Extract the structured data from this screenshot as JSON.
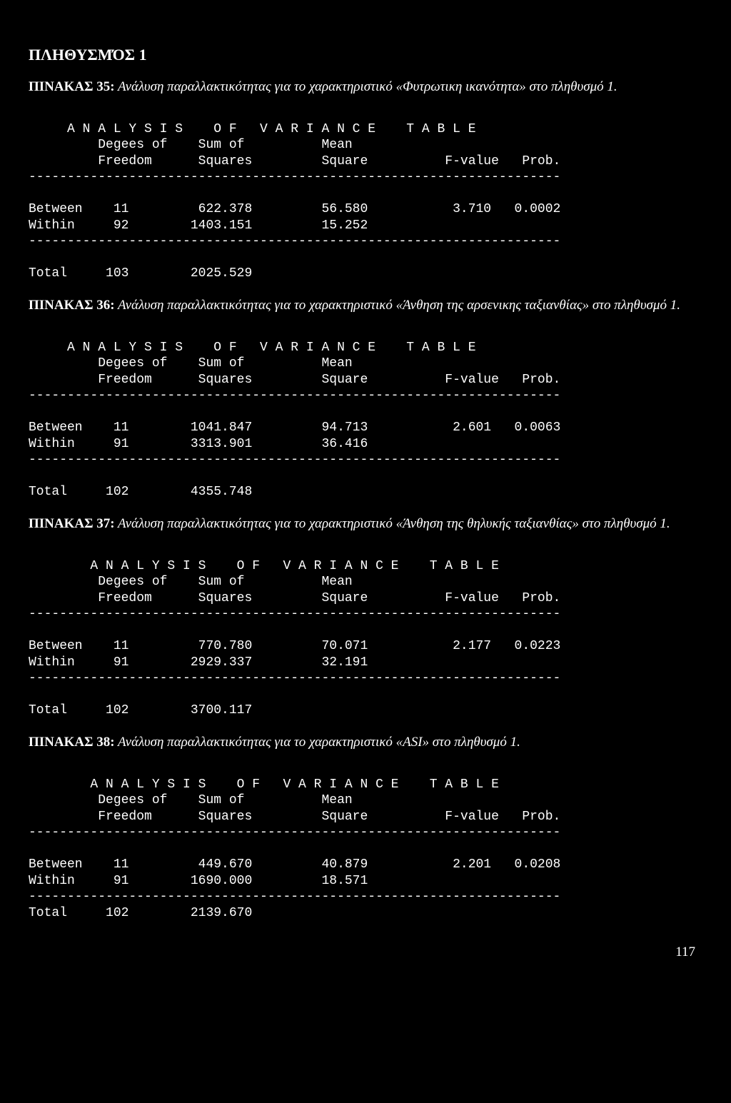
{
  "page_title": "ΠΛΗΘΥΣΜΌΣ 1",
  "page_number": "117",
  "tables": [
    {
      "caption_prefix": "ΠΙΝΑΚΑΣ 35:",
      "caption_rest": "Ανάλυση παραλλακτικότητας για το χαρακτηριστικό «Φυτρωτικη ικανότητα» στο πληθυσμό 1.",
      "header1": "     A N A L Y S I S    O F   V A R I A N C E    T A B L E",
      "header2": "         Degees of    Sum of          Mean",
      "header3": "         Freedom      Squares         Square          F-value   Prob.",
      "dash": "---------------------------------------------------------------------",
      "row_between": "Between    11         622.378         56.580           3.710   0.0002",
      "row_within": "Within     92        1403.151         15.252",
      "row_total": "Total     103        2025.529"
    },
    {
      "caption_prefix": "ΠΙΝΑΚΑΣ 36:",
      "caption_rest": "Ανάλυση παραλλακτικότητας για το χαρακτηριστικό «Άνθηση της αρσενικης ταξιανθίας» στο πληθυσμό 1.",
      "header1": "     A N A L Y S I S    O F   V A R I A N C E    T A B L E",
      "header2": "         Degees of    Sum of          Mean",
      "header3": "         Freedom      Squares         Square          F-value   Prob.",
      "dash": "---------------------------------------------------------------------",
      "row_between": "Between    11        1041.847         94.713           2.601   0.0063",
      "row_within": "Within     91        3313.901         36.416",
      "row_total": "Total     102        4355.748"
    },
    {
      "caption_prefix": "ΠΙΝΑΚΑΣ 37:",
      "caption_rest": "Ανάλυση παραλλακτικότητας για το χαρακτηριστικό «Άνθηση της θηλυκής ταξιανθίας» στο πληθυσμό 1.",
      "header1": "        A N A L Y S I S    O F   V A R I A N C E    T A B L E",
      "header2": "         Degees of    Sum of          Mean",
      "header3": "         Freedom      Squares         Square          F-value   Prob.",
      "dash": "---------------------------------------------------------------------",
      "row_between": "Between    11         770.780         70.071           2.177   0.0223",
      "row_within": "Within     91        2929.337         32.191",
      "row_total": "Total     102        3700.117"
    },
    {
      "caption_prefix": "ΠΙΝΑΚΑΣ 38:",
      "caption_rest": "Ανάλυση παραλλακτικότητας για το χαρακτηριστικό «ASI» στο πληθυσμό 1.",
      "header1": "        A N A L Y S I S    O F   V A R I A N C E    T A B L E",
      "header2": "         Degees of    Sum of          Mean",
      "header3": "         Freedom      Squares         Square          F-value   Prob.",
      "dash": "---------------------------------------------------------------------",
      "row_between": "Between    11         449.670         40.879           2.201   0.0208",
      "row_within": "Within     91        1690.000         18.571",
      "row_total": "Total     102        2139.670"
    }
  ]
}
